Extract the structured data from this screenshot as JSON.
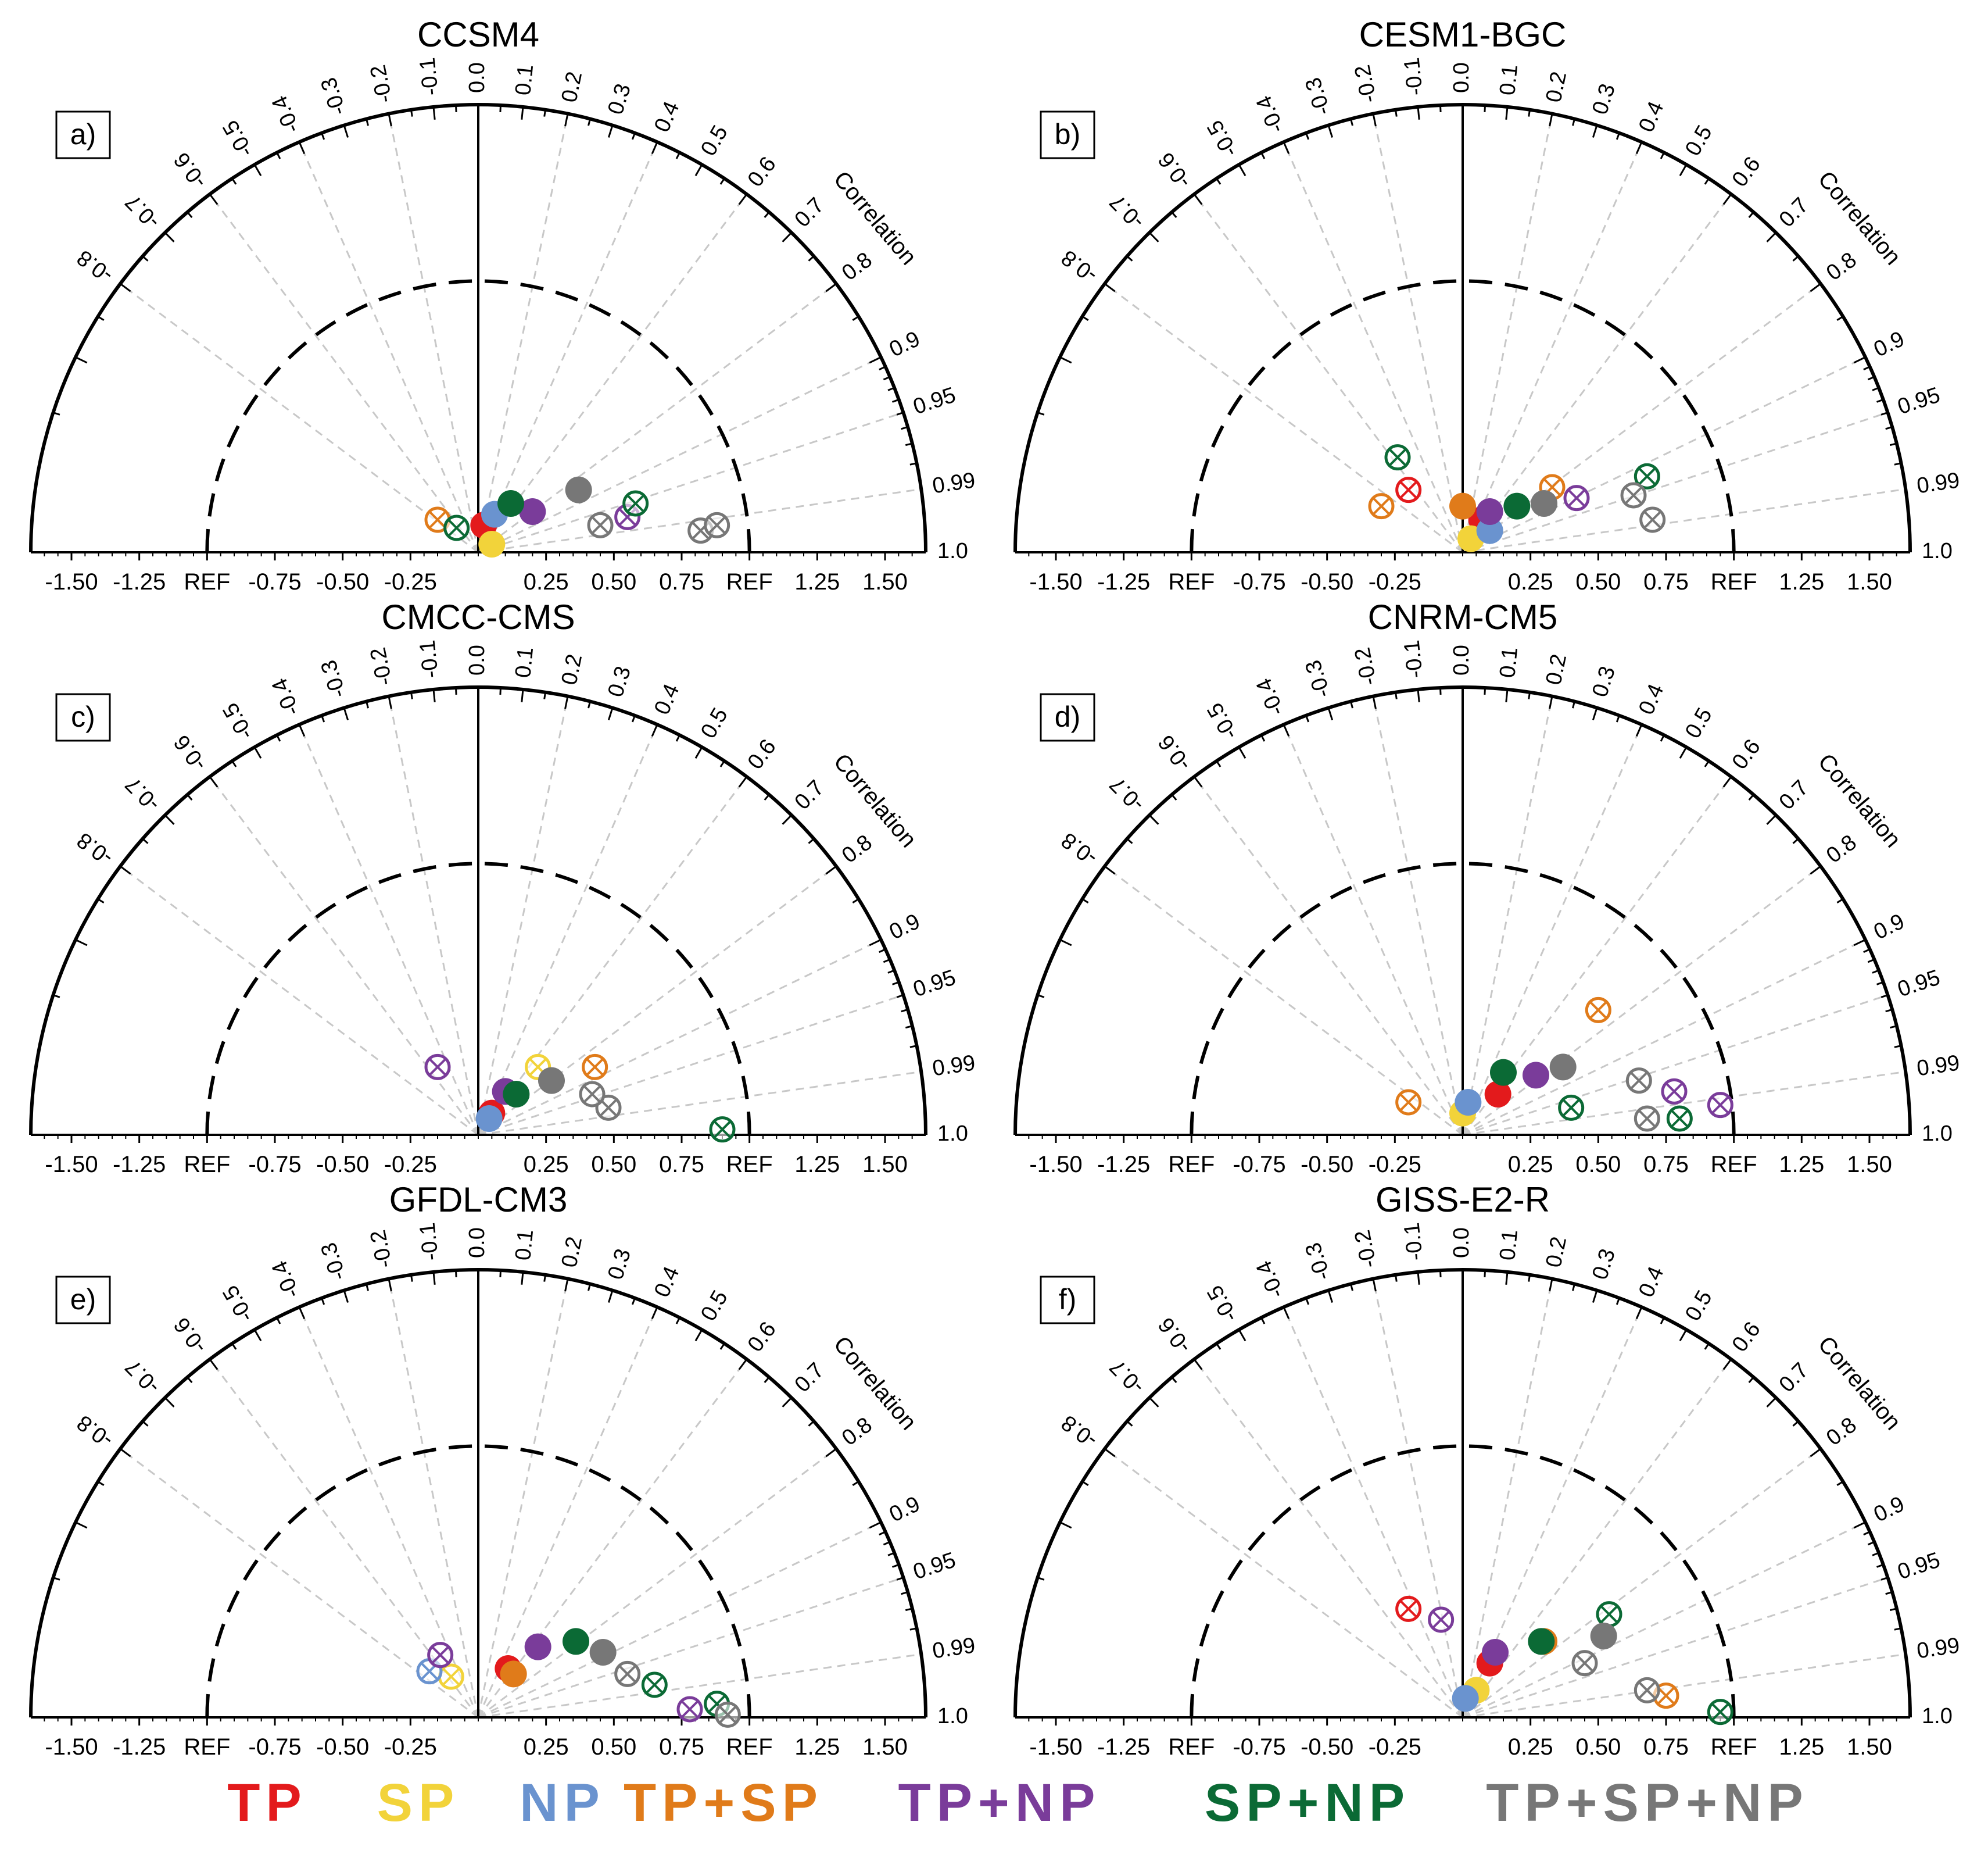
{
  "figure": {
    "legend": [
      {
        "label": "TP",
        "color": "#e31a1c"
      },
      {
        "label": "SP",
        "color": "#f2d33a"
      },
      {
        "label": "NP",
        "color": "#6a93cf"
      },
      {
        "label": "TP+SP",
        "color": "#e07b1a"
      },
      {
        "label": "TP+NP",
        "color": "#7a3c9a"
      },
      {
        "label": "SP+NP",
        "color": "#0b6a35"
      },
      {
        "label": "TP+SP+NP",
        "color": "#777777"
      }
    ]
  },
  "chart_data": [
    {
      "type": "scatter",
      "subtype": "taylor-diagram",
      "panel": "a)",
      "title": "CCSM4",
      "correlation_label": "Correlation",
      "correlation_ticks": [
        "-0.8",
        "-0.7",
        "-0.6",
        "-0.5",
        "-0.4",
        "-0.3",
        "-0.2",
        "-0.1",
        "0.0",
        "0.1",
        "0.2",
        "0.3",
        "0.4",
        "0.5",
        "0.6",
        "0.7",
        "0.8",
        "0.9",
        "0.95",
        "0.99",
        "1.0"
      ],
      "x_tick_labels": [
        "-1.50",
        "-1.25",
        "REF",
        "-0.75",
        "-0.50",
        "-0.25",
        "0.25",
        "0.50",
        "0.75",
        "REF",
        "1.25",
        "1.50"
      ],
      "xlim": [
        -1.65,
        1.65
      ],
      "ref_std": 1.0,
      "points": [
        {
          "series": "TP",
          "x": 0.02,
          "y": 0.1,
          "fill": "solid"
        },
        {
          "series": "SP",
          "x": 0.05,
          "y": 0.03,
          "fill": "solid"
        },
        {
          "series": "NP",
          "x": 0.06,
          "y": 0.14,
          "fill": "solid"
        },
        {
          "series": "TP+SP",
          "x": -0.15,
          "y": 0.12,
          "fill": "cross"
        },
        {
          "series": "TP+NP",
          "x": 0.2,
          "y": 0.15,
          "fill": "solid"
        },
        {
          "series": "TP+NP",
          "x": 0.55,
          "y": 0.13,
          "fill": "cross"
        },
        {
          "series": "SP+NP",
          "x": 0.12,
          "y": 0.18,
          "fill": "solid"
        },
        {
          "series": "SP+NP",
          "x": 0.58,
          "y": 0.18,
          "fill": "cross"
        },
        {
          "series": "SP+NP",
          "x": -0.08,
          "y": 0.09,
          "fill": "cross"
        },
        {
          "series": "TP+SP+NP",
          "x": 0.37,
          "y": 0.23,
          "fill": "solid"
        },
        {
          "series": "TP+SP+NP",
          "x": 0.45,
          "y": 0.1,
          "fill": "cross"
        },
        {
          "series": "TP+SP+NP",
          "x": 0.82,
          "y": 0.08,
          "fill": "cross"
        },
        {
          "series": "TP+SP+NP",
          "x": 0.88,
          "y": 0.1,
          "fill": "cross"
        }
      ]
    },
    {
      "type": "scatter",
      "subtype": "taylor-diagram",
      "panel": "b)",
      "title": "CESM1-BGC",
      "correlation_label": "Correlation",
      "correlation_ticks": [
        "-0.8",
        "-0.7",
        "-0.6",
        "-0.5",
        "-0.4",
        "-0.3",
        "-0.2",
        "-0.1",
        "0.0",
        "0.1",
        "0.2",
        "0.3",
        "0.4",
        "0.5",
        "0.6",
        "0.7",
        "0.8",
        "0.9",
        "0.95",
        "0.99",
        "1.0"
      ],
      "x_tick_labels": [
        "-1.50",
        "-1.25",
        "REF",
        "-0.75",
        "-0.50",
        "-0.25",
        "0.25",
        "0.50",
        "0.75",
        "REF",
        "1.25",
        "1.50"
      ],
      "xlim": [
        -1.65,
        1.65
      ],
      "ref_std": 1.0,
      "points": [
        {
          "series": "TP",
          "x": -0.2,
          "y": 0.23,
          "fill": "cross"
        },
        {
          "series": "TP",
          "x": 0.07,
          "y": 0.12,
          "fill": "solid"
        },
        {
          "series": "SP",
          "x": 0.03,
          "y": 0.05,
          "fill": "solid"
        },
        {
          "series": "NP",
          "x": 0.1,
          "y": 0.08,
          "fill": "solid"
        },
        {
          "series": "TP+SP",
          "x": -0.3,
          "y": 0.17,
          "fill": "cross"
        },
        {
          "series": "TP+SP",
          "x": 0.0,
          "y": 0.17,
          "fill": "solid"
        },
        {
          "series": "TP+SP",
          "x": 0.33,
          "y": 0.24,
          "fill": "cross"
        },
        {
          "series": "TP+NP",
          "x": 0.1,
          "y": 0.15,
          "fill": "solid"
        },
        {
          "series": "TP+NP",
          "x": 0.42,
          "y": 0.2,
          "fill": "cross"
        },
        {
          "series": "SP+NP",
          "x": -0.24,
          "y": 0.35,
          "fill": "cross"
        },
        {
          "series": "SP+NP",
          "x": 0.2,
          "y": 0.17,
          "fill": "solid"
        },
        {
          "series": "SP+NP",
          "x": 0.68,
          "y": 0.28,
          "fill": "cross"
        },
        {
          "series": "TP+SP+NP",
          "x": 0.3,
          "y": 0.18,
          "fill": "solid"
        },
        {
          "series": "TP+SP+NP",
          "x": 0.63,
          "y": 0.21,
          "fill": "cross"
        },
        {
          "series": "TP+SP+NP",
          "x": 0.7,
          "y": 0.12,
          "fill": "cross"
        }
      ]
    },
    {
      "type": "scatter",
      "subtype": "taylor-diagram",
      "panel": "c)",
      "title": "CMCC-CMS",
      "correlation_label": "Correlation",
      "correlation_ticks": [
        "-0.8",
        "-0.7",
        "-0.6",
        "-0.5",
        "-0.4",
        "-0.3",
        "-0.2",
        "-0.1",
        "0.0",
        "0.1",
        "0.2",
        "0.3",
        "0.4",
        "0.5",
        "0.6",
        "0.7",
        "0.8",
        "0.9",
        "0.95",
        "0.99",
        "1.0"
      ],
      "x_tick_labels": [
        "-1.50",
        "-1.25",
        "REF",
        "-0.75",
        "-0.50",
        "-0.25",
        "0.25",
        "0.50",
        "0.75",
        "REF",
        "1.25",
        "1.50"
      ],
      "xlim": [
        -1.65,
        1.65
      ],
      "ref_std": 1.0,
      "points": [
        {
          "series": "TP",
          "x": 0.05,
          "y": 0.08,
          "fill": "solid"
        },
        {
          "series": "SP",
          "x": 0.22,
          "y": 0.25,
          "fill": "cross"
        },
        {
          "series": "NP",
          "x": 0.04,
          "y": 0.06,
          "fill": "solid"
        },
        {
          "series": "TP+SP",
          "x": 0.43,
          "y": 0.25,
          "fill": "cross"
        },
        {
          "series": "TP+NP",
          "x": -0.15,
          "y": 0.25,
          "fill": "cross"
        },
        {
          "series": "TP+NP",
          "x": 0.1,
          "y": 0.16,
          "fill": "solid"
        },
        {
          "series": "SP+NP",
          "x": 0.14,
          "y": 0.15,
          "fill": "solid"
        },
        {
          "series": "SP+NP",
          "x": 0.9,
          "y": 0.02,
          "fill": "cross"
        },
        {
          "series": "TP+SP+NP",
          "x": 0.27,
          "y": 0.2,
          "fill": "solid"
        },
        {
          "series": "TP+SP+NP",
          "x": 0.48,
          "y": 0.1,
          "fill": "cross"
        },
        {
          "series": "TP+SP+NP",
          "x": 0.42,
          "y": 0.15,
          "fill": "cross"
        }
      ]
    },
    {
      "type": "scatter",
      "subtype": "taylor-diagram",
      "panel": "d)",
      "title": "CNRM-CM5",
      "correlation_label": "Correlation",
      "correlation_ticks": [
        "-0.8",
        "-0.7",
        "-0.6",
        "-0.5",
        "-0.4",
        "-0.3",
        "-0.2",
        "-0.1",
        "0.0",
        "0.1",
        "0.2",
        "0.3",
        "0.4",
        "0.5",
        "0.6",
        "0.7",
        "0.8",
        "0.9",
        "0.95",
        "0.99",
        "1.0"
      ],
      "x_tick_labels": [
        "-1.50",
        "-1.25",
        "REF",
        "-0.75",
        "-0.50",
        "-0.25",
        "0.25",
        "0.50",
        "0.75",
        "REF",
        "1.25",
        "1.50"
      ],
      "xlim": [
        -1.65,
        1.65
      ],
      "ref_std": 1.0,
      "points": [
        {
          "series": "TP",
          "x": 0.13,
          "y": 0.15,
          "fill": "solid"
        },
        {
          "series": "SP",
          "x": 0.0,
          "y": 0.08,
          "fill": "solid"
        },
        {
          "series": "NP",
          "x": 0.02,
          "y": 0.12,
          "fill": "solid"
        },
        {
          "series": "TP+SP",
          "x": -0.2,
          "y": 0.12,
          "fill": "cross"
        },
        {
          "series": "TP+SP",
          "x": 0.5,
          "y": 0.46,
          "fill": "cross"
        },
        {
          "series": "TP+NP",
          "x": 0.27,
          "y": 0.22,
          "fill": "solid"
        },
        {
          "series": "TP+NP",
          "x": 0.78,
          "y": 0.16,
          "fill": "cross"
        },
        {
          "series": "TP+NP",
          "x": 0.95,
          "y": 0.11,
          "fill": "cross"
        },
        {
          "series": "SP+NP",
          "x": 0.15,
          "y": 0.23,
          "fill": "solid"
        },
        {
          "series": "SP+NP",
          "x": 0.8,
          "y": 0.06,
          "fill": "cross"
        },
        {
          "series": "SP+NP",
          "x": 0.4,
          "y": 0.1,
          "fill": "cross"
        },
        {
          "series": "TP+SP+NP",
          "x": 0.37,
          "y": 0.25,
          "fill": "solid"
        },
        {
          "series": "TP+SP+NP",
          "x": 0.65,
          "y": 0.2,
          "fill": "cross"
        },
        {
          "series": "TP+SP+NP",
          "x": 0.68,
          "y": 0.06,
          "fill": "cross"
        }
      ]
    },
    {
      "type": "scatter",
      "subtype": "taylor-diagram",
      "panel": "e)",
      "title": "GFDL-CM3",
      "correlation_label": "Correlation",
      "correlation_ticks": [
        "-0.8",
        "-0.7",
        "-0.6",
        "-0.5",
        "-0.4",
        "-0.3",
        "-0.2",
        "-0.1",
        "0.0",
        "0.1",
        "0.2",
        "0.3",
        "0.4",
        "0.5",
        "0.6",
        "0.7",
        "0.8",
        "0.9",
        "0.95",
        "0.99",
        "1.0"
      ],
      "x_tick_labels": [
        "-1.50",
        "-1.25",
        "REF",
        "-0.75",
        "-0.50",
        "-0.25",
        "0.25",
        "0.50",
        "0.75",
        "REF",
        "1.25",
        "1.50"
      ],
      "xlim": [
        -1.65,
        1.65
      ],
      "ref_std": 1.0,
      "points": [
        {
          "series": "TP",
          "x": 0.11,
          "y": 0.18,
          "fill": "solid"
        },
        {
          "series": "SP",
          "x": -0.1,
          "y": 0.15,
          "fill": "cross"
        },
        {
          "series": "NP",
          "x": -0.18,
          "y": 0.17,
          "fill": "cross"
        },
        {
          "series": "TP+SP",
          "x": 0.13,
          "y": 0.16,
          "fill": "solid"
        },
        {
          "series": "TP+NP",
          "x": -0.14,
          "y": 0.23,
          "fill": "cross"
        },
        {
          "series": "TP+NP",
          "x": 0.22,
          "y": 0.26,
          "fill": "solid"
        },
        {
          "series": "TP+NP",
          "x": 0.78,
          "y": 0.03,
          "fill": "cross"
        },
        {
          "series": "SP+NP",
          "x": 0.36,
          "y": 0.28,
          "fill": "solid"
        },
        {
          "series": "SP+NP",
          "x": 0.65,
          "y": 0.12,
          "fill": "cross"
        },
        {
          "series": "SP+NP",
          "x": 0.88,
          "y": 0.05,
          "fill": "cross"
        },
        {
          "series": "TP+SP+NP",
          "x": 0.46,
          "y": 0.24,
          "fill": "solid"
        },
        {
          "series": "TP+SP+NP",
          "x": 0.55,
          "y": 0.16,
          "fill": "cross"
        },
        {
          "series": "TP+SP+NP",
          "x": 0.92,
          "y": 0.01,
          "fill": "cross"
        }
      ]
    },
    {
      "type": "scatter",
      "subtype": "taylor-diagram",
      "panel": "f)",
      "title": "GISS-E2-R",
      "correlation_label": "Correlation",
      "correlation_ticks": [
        "-0.8",
        "-0.7",
        "-0.6",
        "-0.5",
        "-0.4",
        "-0.3",
        "-0.2",
        "-0.1",
        "0.0",
        "0.1",
        "0.2",
        "0.3",
        "0.4",
        "0.5",
        "0.6",
        "0.7",
        "0.8",
        "0.9",
        "0.95",
        "0.99",
        "1.0"
      ],
      "x_tick_labels": [
        "-1.50",
        "-1.25",
        "REF",
        "-0.75",
        "-0.50",
        "-0.25",
        "0.25",
        "0.50",
        "0.75",
        "REF",
        "1.25",
        "1.50"
      ],
      "xlim": [
        -1.65,
        1.65
      ],
      "ref_std": 1.0,
      "points": [
        {
          "series": "TP",
          "x": -0.2,
          "y": 0.4,
          "fill": "cross"
        },
        {
          "series": "TP",
          "x": 0.1,
          "y": 0.2,
          "fill": "solid"
        },
        {
          "series": "SP",
          "x": 0.05,
          "y": 0.1,
          "fill": "solid"
        },
        {
          "series": "NP",
          "x": 0.01,
          "y": 0.07,
          "fill": "solid"
        },
        {
          "series": "TP+SP",
          "x": 0.75,
          "y": 0.08,
          "fill": "cross"
        },
        {
          "series": "TP+SP",
          "x": 0.3,
          "y": 0.28,
          "fill": "solid"
        },
        {
          "series": "TP+NP",
          "x": -0.08,
          "y": 0.36,
          "fill": "cross"
        },
        {
          "series": "TP+NP",
          "x": 0.12,
          "y": 0.24,
          "fill": "solid"
        },
        {
          "series": "SP+NP",
          "x": 0.29,
          "y": 0.28,
          "fill": "solid"
        },
        {
          "series": "SP+NP",
          "x": 0.54,
          "y": 0.38,
          "fill": "cross"
        },
        {
          "series": "SP+NP",
          "x": 0.95,
          "y": 0.02,
          "fill": "cross"
        },
        {
          "series": "TP+SP+NP",
          "x": 0.52,
          "y": 0.3,
          "fill": "solid"
        },
        {
          "series": "TP+SP+NP",
          "x": 0.68,
          "y": 0.1,
          "fill": "cross"
        },
        {
          "series": "TP+SP+NP",
          "x": 0.45,
          "y": 0.2,
          "fill": "cross"
        }
      ]
    }
  ]
}
